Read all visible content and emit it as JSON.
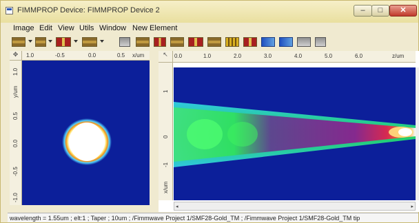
{
  "window": {
    "title": "FIMMPROP Device: FIMMPROP Device 2",
    "buttons": {
      "minimize": "–",
      "maximize": "□",
      "close": "✕"
    },
    "icon": "app-window-icon"
  },
  "menu": [
    {
      "label": "Image"
    },
    {
      "label": "Edit"
    },
    {
      "label": "View"
    },
    {
      "label": "Utils"
    },
    {
      "label": "Window"
    },
    {
      "label": "New Element"
    }
  ],
  "toolbar": {
    "icons": [
      "waveguide-section-icon",
      "joint-icon",
      "taper-icon",
      "bend-icon",
      "device-icon",
      "scatter-icon",
      "taper-section-icon",
      "lens-icon",
      "grating-icon",
      "mirror-icon",
      "grid-icon",
      "slanted-icon",
      "periodic-icon",
      "array-icon",
      "export-icon",
      "properties-icon"
    ]
  },
  "left_plot": {
    "x_ticks": [
      "1.0",
      "-0.5",
      "0.0",
      "0.5"
    ],
    "x_unit": "x/um",
    "y_ticks": [
      "1.0",
      "0.5",
      "0.0",
      "-0.5",
      "-1.0"
    ],
    "y_unit": "y/um",
    "colors": {
      "background": "#0c1f9a",
      "core": "#ffffff"
    }
  },
  "right_plot": {
    "x_ticks": [
      "0.0",
      "1.0",
      "2.0",
      "3.0",
      "4.0",
      "5.0",
      "6.0"
    ],
    "x_unit": "z/um",
    "y_ticks": [
      "1",
      "0",
      "-1"
    ],
    "y_unit": "x/um"
  },
  "status": {
    "text": "wavelength = 1.55um ; elt:1 ; Taper ; 10um ; /Fimmwave Project 1/SMF28-Gold_TM ; /Fimmwave Project 1/SMF28-Gold_TM tip"
  }
}
